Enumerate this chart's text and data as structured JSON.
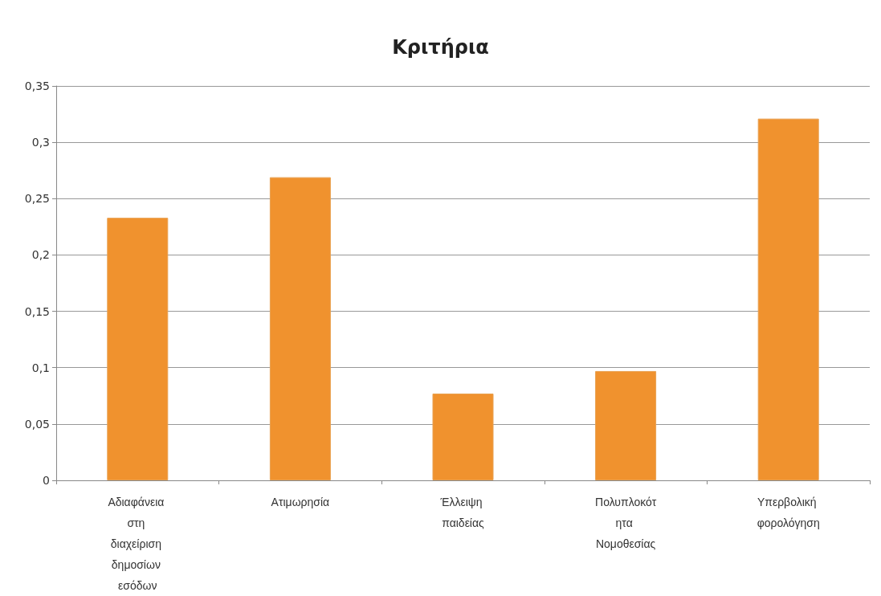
{
  "chart_data": {
    "type": "bar",
    "title": "Κριτήρια",
    "categories": [
      "Αδιαφάνεια στη διαχείριση δημοσίων εσόδων",
      "Ατιμωρησία",
      "Έλλειψη παιδείας",
      "Πολυπλοκότητα Νομοθεσίας",
      "Υπερβολική φορολόγηση"
    ],
    "values": [
      0.233,
      0.269,
      0.077,
      0.097,
      0.321
    ],
    "color": "#f0922e",
    "ylim": [
      0,
      0.35
    ],
    "yticks": [
      {
        "value": 0,
        "label": "0"
      },
      {
        "value": 0.05,
        "label": "0,05"
      },
      {
        "value": 0.1,
        "label": "0,1"
      },
      {
        "value": 0.15,
        "label": "0,15"
      },
      {
        "value": 0.2,
        "label": "0,2"
      },
      {
        "value": 0.25,
        "label": "0,25"
      },
      {
        "value": 0.3,
        "label": "0,3"
      },
      {
        "value": 0.35,
        "label": "0,35"
      }
    ],
    "grid": "y"
  }
}
